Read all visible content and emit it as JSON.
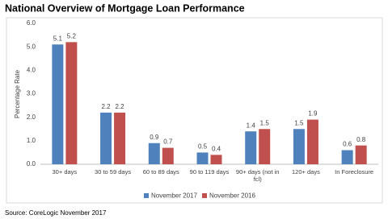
{
  "chart_data": {
    "type": "bar",
    "title": "National Overview of Mortgage Loan Performance",
    "y_label": "Percentage Rate",
    "categories": [
      "30+ days",
      "30 to 59 days",
      "60 to 89 days",
      "90 to 119 days",
      "90+ days (not in fcl)",
      "120+ days",
      "In Foreclosure"
    ],
    "series": [
      {
        "name": "November 2017",
        "color": "#4f81bd",
        "values": [
          5.1,
          2.2,
          0.9,
          0.5,
          1.4,
          1.5,
          0.6
        ]
      },
      {
        "name": "November 2016",
        "color": "#c0504d",
        "values": [
          5.2,
          2.2,
          0.7,
          0.4,
          1.5,
          1.9,
          0.8
        ]
      }
    ],
    "ylim": [
      0,
      6
    ],
    "yticks": [
      {
        "value": 0,
        "label": "0.0"
      },
      {
        "value": 1,
        "label": "1.0"
      },
      {
        "value": 2,
        "label": "2.0"
      },
      {
        "value": 3,
        "label": "3.0"
      },
      {
        "value": 4,
        "label": "4.0"
      },
      {
        "value": 5,
        "label": "5.0"
      },
      {
        "value": 6,
        "label": "6.0"
      }
    ],
    "grid": false,
    "legend": "bottom",
    "source": "Source: CoreLogic November 2017"
  }
}
